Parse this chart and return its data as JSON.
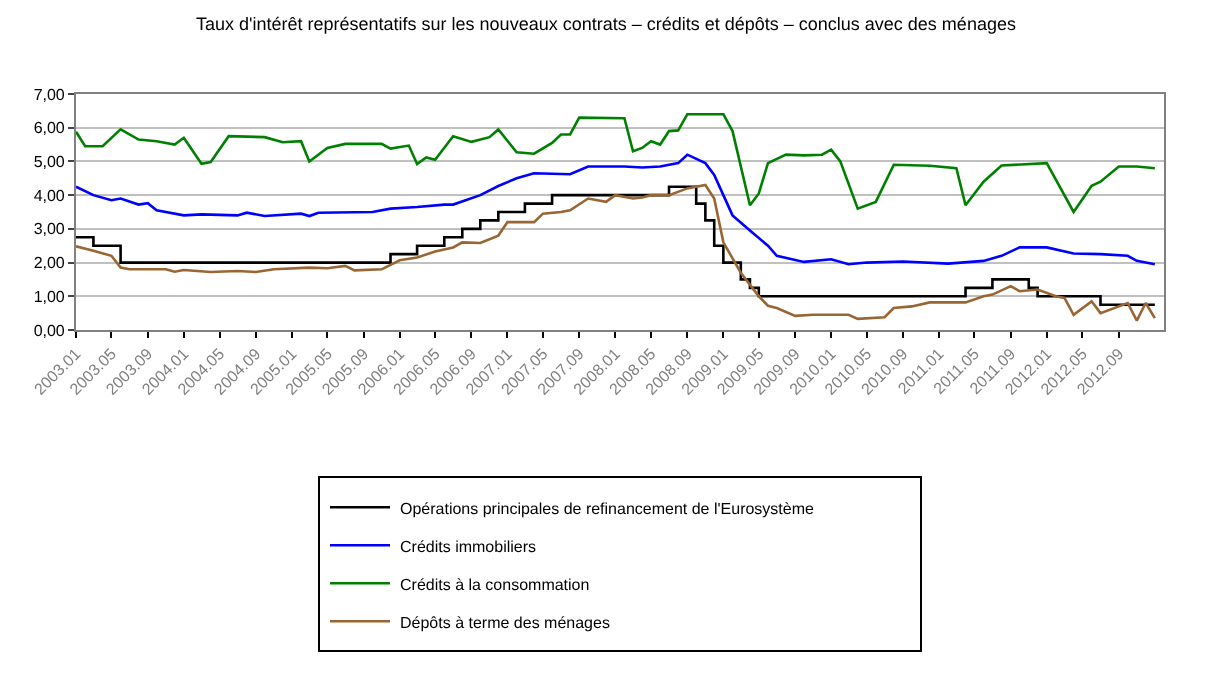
{
  "chart_data": {
    "type": "line",
    "title": "Taux d'intérêt représentatifs sur les nouveaux contrats – crédits et dépôts – conclus avec des ménages",
    "xlim": [
      "2003-01",
      "2013-02"
    ],
    "xticks": [
      {
        "value": "2003-01",
        "label": "2003.01"
      },
      {
        "value": "2003-05",
        "label": "2003.05"
      },
      {
        "value": "2003-09",
        "label": "2003.09"
      },
      {
        "value": "2004-01",
        "label": "2004.01"
      },
      {
        "value": "2004-05",
        "label": "2004.05"
      },
      {
        "value": "2004-09",
        "label": "2004.09"
      },
      {
        "value": "2005-01",
        "label": "2005.01"
      },
      {
        "value": "2005-05",
        "label": "2005.05"
      },
      {
        "value": "2005-09",
        "label": "2005.09"
      },
      {
        "value": "2006-01",
        "label": "2006.01"
      },
      {
        "value": "2006-05",
        "label": "2006.05"
      },
      {
        "value": "2006-09",
        "label": "2006.09"
      },
      {
        "value": "2007-01",
        "label": "2007.01"
      },
      {
        "value": "2007-05",
        "label": "2007.05"
      },
      {
        "value": "2007-09",
        "label": "2007.09"
      },
      {
        "value": "2008-01",
        "label": "2008.01"
      },
      {
        "value": "2008-05",
        "label": "2008.05"
      },
      {
        "value": "2008-09",
        "label": "2008.09"
      },
      {
        "value": "2009-01",
        "label": "2009.01"
      },
      {
        "value": "2009-05",
        "label": "2009.05"
      },
      {
        "value": "2009-09",
        "label": "2009.09"
      },
      {
        "value": "2010-01",
        "label": "2010.01"
      },
      {
        "value": "2010-05",
        "label": "2010.05"
      },
      {
        "value": "2010-09",
        "label": "2010.09"
      },
      {
        "value": "2011-01",
        "label": "2011.01"
      },
      {
        "value": "2011-05",
        "label": "2011.05"
      },
      {
        "value": "2011-09",
        "label": "2011.09"
      },
      {
        "value": "2012-01",
        "label": "2012.01"
      },
      {
        "value": "2012-05",
        "label": "2012.05"
      },
      {
        "value": "2012-09",
        "label": "2012.09"
      }
    ],
    "ylim": [
      0,
      7
    ],
    "yticks": [
      {
        "value": 0,
        "label": "0,00"
      },
      {
        "value": 1,
        "label": "1,00"
      },
      {
        "value": 2,
        "label": "2,00"
      },
      {
        "value": 3,
        "label": "3,00"
      },
      {
        "value": 4,
        "label": "4,00"
      },
      {
        "value": 5,
        "label": "5,00"
      },
      {
        "value": 6,
        "label": "6,00"
      },
      {
        "value": 7,
        "label": "7,00"
      }
    ],
    "grid": "y",
    "legend": "bottom",
    "marker": "none",
    "line_style": "solid",
    "series": [
      {
        "name": "Opérations principales de refinancement de l'Eurosystème",
        "type": "step",
        "color": "#000000",
        "x": [
          "2003-01",
          "2003-03",
          "2003-06",
          "2005-12",
          "2006-03",
          "2006-06",
          "2006-08",
          "2006-10",
          "2006-12",
          "2007-03",
          "2007-06",
          "2008-07",
          "2008-10",
          "2008-11",
          "2008-12",
          "2009-01",
          "2009-03",
          "2009-04",
          "2009-05",
          "2011-04",
          "2011-07",
          "2011-11",
          "2011-12",
          "2012-07",
          "2013-01"
        ],
        "values": [
          2.75,
          2.5,
          2.0,
          2.25,
          2.5,
          2.75,
          3.0,
          3.25,
          3.5,
          3.75,
          4.0,
          4.25,
          3.75,
          3.25,
          2.5,
          2.0,
          1.5,
          1.25,
          1.0,
          1.25,
          1.5,
          1.25,
          1.0,
          0.75,
          0.75
        ]
      },
      {
        "name": "Crédits immobiliers",
        "color": "#0000ff",
        "x": [
          "2003-01",
          "2003-03",
          "2003-05",
          "2003-06",
          "2003-08",
          "2003-09",
          "2003-10",
          "2004-01",
          "2004-03",
          "2004-07",
          "2004-08",
          "2004-10",
          "2005-02",
          "2005-03",
          "2005-04",
          "2005-10",
          "2005-12",
          "2006-03",
          "2006-06",
          "2006-07",
          "2006-10",
          "2006-12",
          "2007-02",
          "2007-04",
          "2007-08",
          "2007-10",
          "2008-02",
          "2008-04",
          "2008-06",
          "2008-08",
          "2008-09",
          "2008-11",
          "2008-12",
          "2009-01",
          "2009-02",
          "2009-04",
          "2009-06",
          "2009-07",
          "2009-10",
          "2010-01",
          "2010-03",
          "2010-05",
          "2010-09",
          "2011-02",
          "2011-06",
          "2011-08",
          "2011-10",
          "2012-01",
          "2012-04",
          "2012-07",
          "2012-10",
          "2012-11",
          "2013-01"
        ],
        "values": [
          4.25,
          4.0,
          3.85,
          3.9,
          3.72,
          3.76,
          3.55,
          3.4,
          3.43,
          3.4,
          3.48,
          3.38,
          3.45,
          3.38,
          3.48,
          3.5,
          3.6,
          3.65,
          3.72,
          3.72,
          4.0,
          4.27,
          4.5,
          4.65,
          4.62,
          4.85,
          4.85,
          4.82,
          4.85,
          4.95,
          5.2,
          4.95,
          4.6,
          4.0,
          3.4,
          2.95,
          2.5,
          2.2,
          2.02,
          2.1,
          1.95,
          2.0,
          2.03,
          1.97,
          2.05,
          2.2,
          2.45,
          2.45,
          2.27,
          2.25,
          2.2,
          2.05,
          1.95
        ]
      },
      {
        "name": "Crédits à la consommation",
        "color": "#008000",
        "x": [
          "2003-01",
          "2003-02",
          "2003-04",
          "2003-06",
          "2003-08",
          "2003-10",
          "2003-12",
          "2004-01",
          "2004-03",
          "2004-04",
          "2004-06",
          "2004-10",
          "2004-12",
          "2005-02",
          "2005-03",
          "2005-05",
          "2005-07",
          "2005-11",
          "2005-12",
          "2006-02",
          "2006-03",
          "2006-04",
          "2006-05",
          "2006-07",
          "2006-09",
          "2006-11",
          "2006-12",
          "2007-02",
          "2007-04",
          "2007-06",
          "2007-07",
          "2007-08",
          "2007-09",
          "2008-02",
          "2008-03",
          "2008-04",
          "2008-05",
          "2008-06",
          "2008-07",
          "2008-08",
          "2008-09",
          "2009-01",
          "2009-02",
          "2009-04",
          "2009-05",
          "2009-06",
          "2009-08",
          "2009-10",
          "2009-12",
          "2010-01",
          "2010-02",
          "2010-04",
          "2010-06",
          "2010-08",
          "2010-12",
          "2011-03",
          "2011-04",
          "2011-06",
          "2011-08",
          "2012-01",
          "2012-04",
          "2012-06",
          "2012-07",
          "2012-09",
          "2012-11",
          "2013-01"
        ],
        "values": [
          5.88,
          5.45,
          5.45,
          5.95,
          5.65,
          5.6,
          5.5,
          5.7,
          4.93,
          4.98,
          5.75,
          5.72,
          5.57,
          5.6,
          5.0,
          5.4,
          5.52,
          5.52,
          5.38,
          5.47,
          4.92,
          5.12,
          5.05,
          5.75,
          5.58,
          5.72,
          5.95,
          5.27,
          5.23,
          5.55,
          5.8,
          5.8,
          6.3,
          6.28,
          5.3,
          5.4,
          5.6,
          5.5,
          5.9,
          5.92,
          6.4,
          6.4,
          5.9,
          3.7,
          4.05,
          4.95,
          5.2,
          5.18,
          5.2,
          5.35,
          5.0,
          3.6,
          3.8,
          4.9,
          4.87,
          4.8,
          3.7,
          4.4,
          4.88,
          4.95,
          3.5,
          4.28,
          4.4,
          4.85,
          4.85,
          4.8
        ]
      },
      {
        "name": "Dépôts à terme des ménages",
        "color": "#996633",
        "x": [
          "2003-01",
          "2003-03",
          "2003-05",
          "2003-06",
          "2003-07",
          "2003-11",
          "2003-12",
          "2004-01",
          "2004-04",
          "2004-07",
          "2004-09",
          "2004-11",
          "2005-03",
          "2005-05",
          "2005-07",
          "2005-08",
          "2005-11",
          "2006-01",
          "2006-03",
          "2006-05",
          "2006-07",
          "2006-08",
          "2006-10",
          "2006-12",
          "2007-01",
          "2007-04",
          "2007-05",
          "2007-07",
          "2007-08",
          "2007-10",
          "2007-12",
          "2008-01",
          "2008-03",
          "2008-04",
          "2008-05",
          "2008-07",
          "2008-09",
          "2008-11",
          "2008-12",
          "2009-01",
          "2009-03",
          "2009-05",
          "2009-06",
          "2009-07",
          "2009-09",
          "2009-11",
          "2010-03",
          "2010-04",
          "2010-07",
          "2010-08",
          "2010-10",
          "2010-12",
          "2011-04",
          "2011-06",
          "2011-07",
          "2011-09",
          "2011-10",
          "2011-12",
          "2012-02",
          "2012-03",
          "2012-04",
          "2012-06",
          "2012-07",
          "2012-10",
          "2012-11",
          "2012-12",
          "2013-01"
        ],
        "values": [
          2.48,
          2.35,
          2.2,
          1.85,
          1.8,
          1.8,
          1.73,
          1.78,
          1.72,
          1.75,
          1.72,
          1.8,
          1.85,
          1.83,
          1.9,
          1.77,
          1.8,
          2.07,
          2.15,
          2.33,
          2.45,
          2.6,
          2.58,
          2.8,
          3.2,
          3.2,
          3.45,
          3.5,
          3.55,
          3.9,
          3.8,
          4.0,
          3.9,
          3.93,
          4.0,
          4.0,
          4.2,
          4.3,
          3.9,
          2.6,
          1.7,
          1.0,
          0.72,
          0.65,
          0.42,
          0.45,
          0.45,
          0.33,
          0.38,
          0.65,
          0.7,
          0.82,
          0.82,
          1.0,
          1.05,
          1.3,
          1.15,
          1.2,
          1.0,
          0.95,
          0.45,
          0.85,
          0.5,
          0.8,
          0.28,
          0.8,
          0.35
        ]
      }
    ]
  }
}
